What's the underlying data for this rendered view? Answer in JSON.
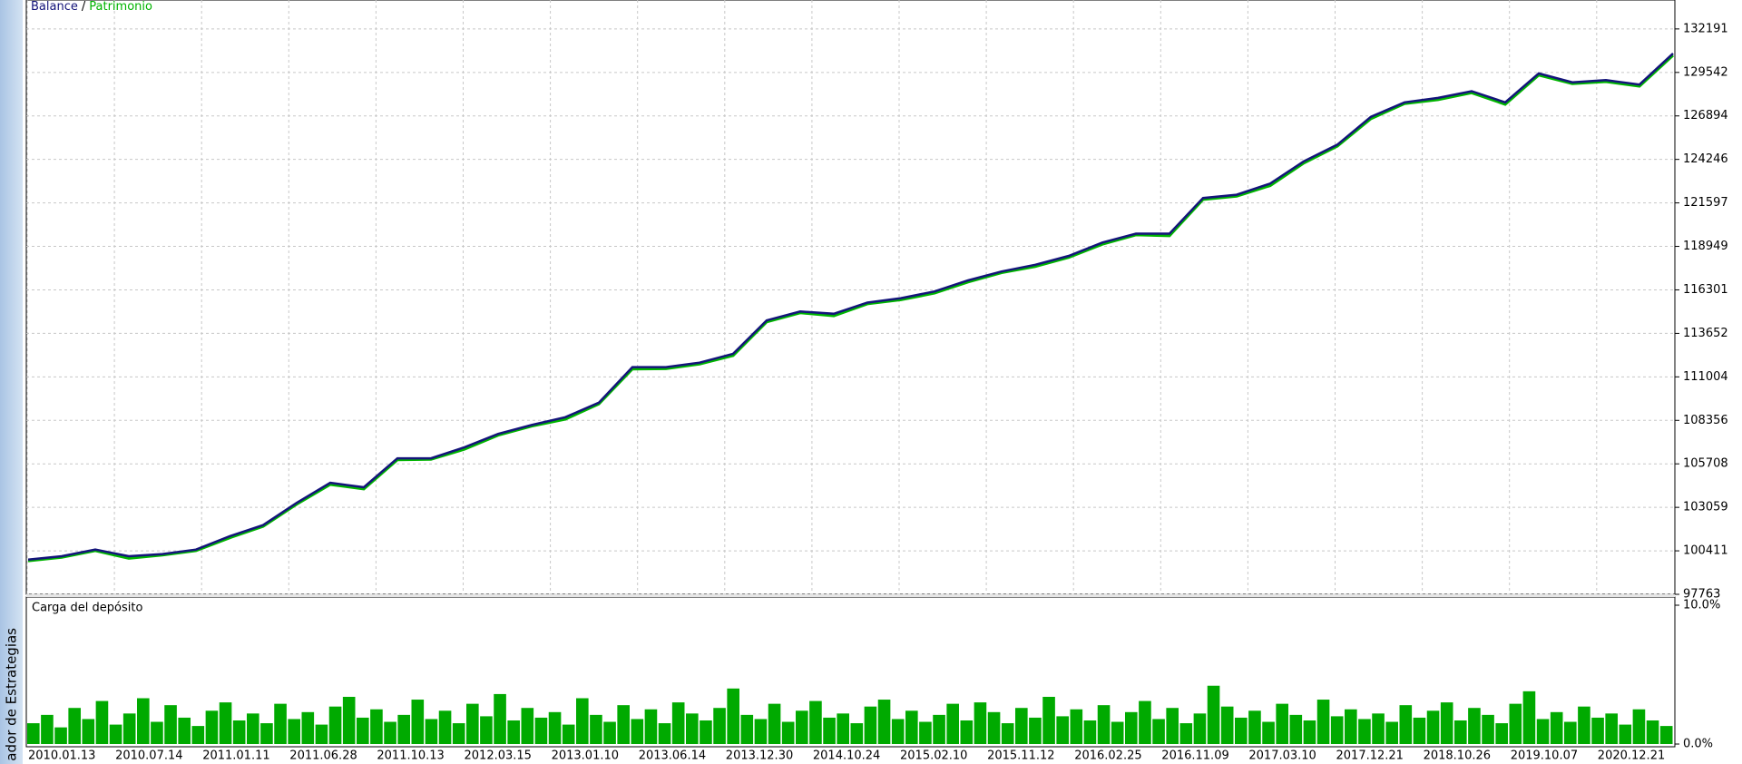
{
  "sidebar_label": "ador de Estrategias",
  "chart_data": [
    {
      "type": "line",
      "legend_separator": "/",
      "ylim": [
        97763,
        133952
      ],
      "yticks": [
        97763,
        100411,
        103059,
        105708,
        108356,
        111004,
        113652,
        116301,
        118949,
        121597,
        124246,
        126894,
        129542,
        132191
      ],
      "grid": true,
      "series": [
        {
          "name": "Patrimonio",
          "color": "#00b400",
          "values": [
            99800,
            100010,
            100420,
            99950,
            100150,
            100420,
            101200,
            101900,
            103250,
            104450,
            104180,
            105950,
            105980,
            106600,
            107450,
            108000,
            108420,
            109350,
            111480,
            111500,
            111780,
            112300,
            114350,
            114900,
            114720,
            115450,
            115700,
            116100,
            116780,
            117350,
            117720,
            118280,
            119080,
            119650,
            119600,
            121800,
            122000,
            122650,
            124020,
            125050,
            126720,
            127640,
            127880,
            128300,
            127600,
            129380,
            128850,
            128980,
            128700,
            130580
          ]
        },
        {
          "name": "Balance",
          "color": "#14147a",
          "values": [
            99879,
            100082,
            100488,
            100082,
            100217,
            100488,
            101301,
            101979,
            103334,
            104553,
            104282,
            106043,
            106043,
            106721,
            107533,
            108075,
            108549,
            109430,
            111598,
            111598,
            111869,
            112411,
            114443,
            114985,
            114849,
            115527,
            115798,
            116204,
            116882,
            117423,
            117830,
            118372,
            119185,
            119727,
            119727,
            121894,
            122097,
            122775,
            124130,
            125146,
            126839,
            127720,
            127991,
            128397,
            127720,
            129481,
            128939,
            129075,
            128804,
            130700
          ]
        }
      ]
    },
    {
      "type": "bar",
      "title": "Carga del depósito",
      "color": "#00aa00",
      "ylim": [
        0,
        10
      ],
      "yticks": [
        {
          "value": 10,
          "label": "10.0%"
        },
        {
          "value": 0,
          "label": "0.0%"
        }
      ],
      "xtick_labels": [
        "2010.01.13",
        "2010.07.14",
        "2011.01.11",
        "2011.06.28",
        "2011.10.13",
        "2012.03.15",
        "2013.01.10",
        "2013.06.14",
        "2013.12.30",
        "2014.10.24",
        "2015.02.10",
        "2015.11.12",
        "2016.02.25",
        "2016.11.09",
        "2017.03.10",
        "2017.12.21",
        "2018.10.26",
        "2019.10.07",
        "2020.12.21"
      ],
      "values": [
        1.5,
        2.1,
        1.2,
        2.6,
        1.8,
        3.1,
        1.4,
        2.2,
        3.3,
        1.6,
        2.8,
        1.9,
        1.3,
        2.4,
        3.0,
        1.7,
        2.2,
        1.5,
        2.9,
        1.8,
        2.3,
        1.4,
        2.7,
        3.4,
        1.9,
        2.5,
        1.6,
        2.1,
        3.2,
        1.8,
        2.4,
        1.5,
        2.9,
        2.0,
        3.6,
        1.7,
        2.6,
        1.9,
        2.3,
        1.4,
        3.3,
        2.1,
        1.6,
        2.8,
        1.8,
        2.5,
        1.5,
        3.0,
        2.2,
        1.7,
        2.6,
        4.0,
        2.1,
        1.8,
        2.9,
        1.6,
        2.4,
        3.1,
        1.9,
        2.2,
        1.5,
        2.7,
        3.2,
        1.8,
        2.4,
        1.6,
        2.1,
        2.9,
        1.7,
        3.0,
        2.3,
        1.5,
        2.6,
        1.9,
        3.4,
        2.0,
        2.5,
        1.7,
        2.8,
        1.6,
        2.3,
        3.1,
        1.8,
        2.6,
        1.5,
        2.2,
        4.2,
        2.7,
        1.9,
        2.4,
        1.6,
        2.9,
        2.1,
        1.7,
        3.2,
        2.0,
        2.5,
        1.8,
        2.2,
        1.6,
        2.8,
        1.9,
        2.4,
        3.0,
        1.7,
        2.6,
        2.1,
        1.5,
        2.9,
        3.8,
        1.8,
        2.3,
        1.6,
        2.7,
        1.9,
        2.2,
        1.4,
        2.5,
        1.7,
        1.3
      ]
    }
  ]
}
